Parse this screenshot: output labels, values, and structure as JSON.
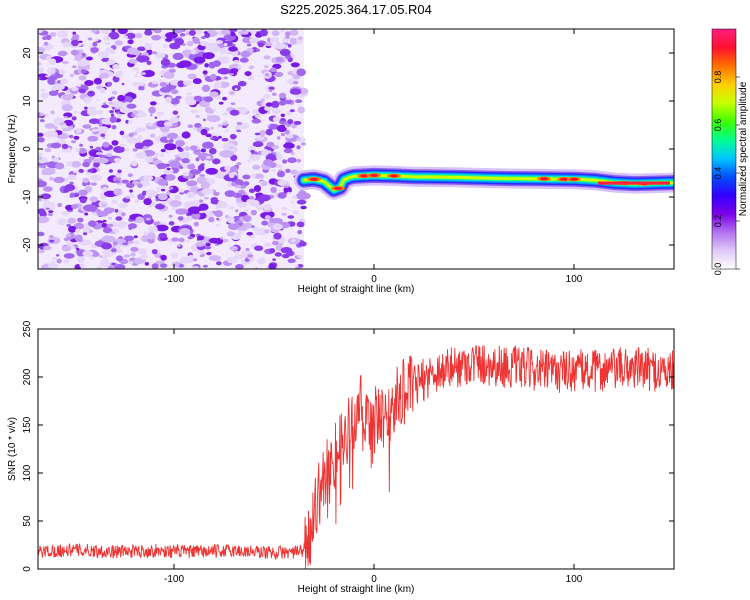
{
  "title": "S225.2025.364.17.05.R04",
  "chart_data": [
    {
      "type": "heatmap",
      "xlabel": "Height of straight line (km)",
      "ylabel": "Frequency (Hz)",
      "xlim": [
        -168,
        150
      ],
      "ylim": [
        -25,
        25
      ],
      "xticks": [
        -100,
        0,
        100
      ],
      "yticks": [
        -20,
        -10,
        0,
        10,
        20
      ],
      "noise_region_x": [
        -168,
        -35
      ],
      "signal_trace": {
        "x": [
          -35,
          -30,
          -25,
          -20,
          -17,
          -15,
          -12,
          -10,
          -5,
          0,
          10,
          20,
          40,
          60,
          80,
          100,
          110,
          120,
          130,
          140,
          150
        ],
        "y": [
          -6.5,
          -6.3,
          -6.8,
          -8.5,
          -8.0,
          -6.4,
          -5.9,
          -5.7,
          -5.6,
          -5.5,
          -5.6,
          -5.8,
          -5.9,
          -6.1,
          -6.2,
          -6.3,
          -6.5,
          -7.0,
          -7.2,
          -7.1,
          -7.0
        ]
      },
      "colorbar": {
        "label": "Normalized spectral amplitude",
        "ticks": [
          0.0,
          0.2,
          0.4,
          0.6,
          0.8
        ],
        "range": [
          0,
          1
        ],
        "colors": [
          "#ffffff",
          "#e0c8f8",
          "#b070f0",
          "#7a00e8",
          "#3000ff",
          "#0050ff",
          "#00c8ff",
          "#00ff90",
          "#40ff00",
          "#c8ff00",
          "#ffd000",
          "#ff7000",
          "#ff1030",
          "#ff2080"
        ]
      }
    },
    {
      "type": "line",
      "xlabel": "Height of straight line (km)",
      "ylabel": "SNR (10 * v/v)",
      "xlim": [
        -168,
        150
      ],
      "ylim": [
        0,
        250
      ],
      "xticks": [
        -100,
        0,
        100
      ],
      "yticks": [
        0,
        50,
        100,
        150,
        200,
        250
      ],
      "series": [
        {
          "color": "#ee3333",
          "x": [
            -168,
            -150,
            -130,
            -110,
            -90,
            -70,
            -50,
            -35,
            -30,
            -25,
            -20,
            -15,
            -10,
            -7,
            -5,
            0,
            5,
            10,
            15,
            20,
            30,
            40,
            50,
            60,
            70,
            80,
            90,
            100,
            110,
            120,
            130,
            140,
            150
          ],
          "y": [
            18,
            20,
            18,
            19,
            18,
            19,
            17,
            18,
            60,
            95,
            115,
            140,
            150,
            175,
            145,
            160,
            150,
            172,
            185,
            190,
            205,
            210,
            215,
            212,
            210,
            208,
            205,
            207,
            206,
            208,
            210,
            207,
            205
          ]
        }
      ]
    }
  ]
}
